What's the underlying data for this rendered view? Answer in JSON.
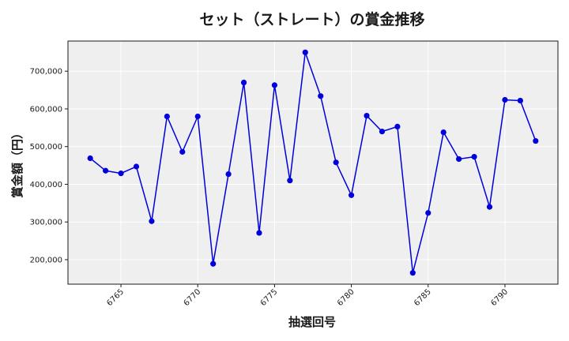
{
  "chart_data": {
    "type": "line",
    "title": "セット（ストレート）の賞金推移",
    "xlabel": "抽選回号",
    "ylabel": "賞金額（円）",
    "x": [
      6763,
      6764,
      6765,
      6766,
      6767,
      6768,
      6769,
      6770,
      6771,
      6772,
      6773,
      6774,
      6775,
      6776,
      6777,
      6778,
      6779,
      6780,
      6781,
      6782,
      6783,
      6784,
      6785,
      6786,
      6787,
      6788,
      6789,
      6790,
      6791,
      6792
    ],
    "series": [
      {
        "values": [
          469000,
          436000,
          429000,
          447000,
          302000,
          580000,
          486000,
          580000,
          189000,
          427000,
          670000,
          271000,
          663000,
          410000,
          750000,
          634000,
          458000,
          371000,
          582000,
          540000,
          553000,
          165000,
          324000,
          538000,
          467000,
          473000,
          340000,
          624000,
          622000,
          515000
        ],
        "color": "#0000dd"
      }
    ],
    "xticks": [
      "6765",
      "6770",
      "6775",
      "6780",
      "6785",
      "6790"
    ],
    "yticks": [
      "200,000",
      "300,000",
      "400,000",
      "500,000",
      "600,000",
      "700,000"
    ],
    "xlim": [
      6761.55,
      6793.45
    ],
    "ylim": [
      135000,
      780000
    ],
    "grid": true,
    "legend": "none",
    "plot_background": "#efefef"
  }
}
